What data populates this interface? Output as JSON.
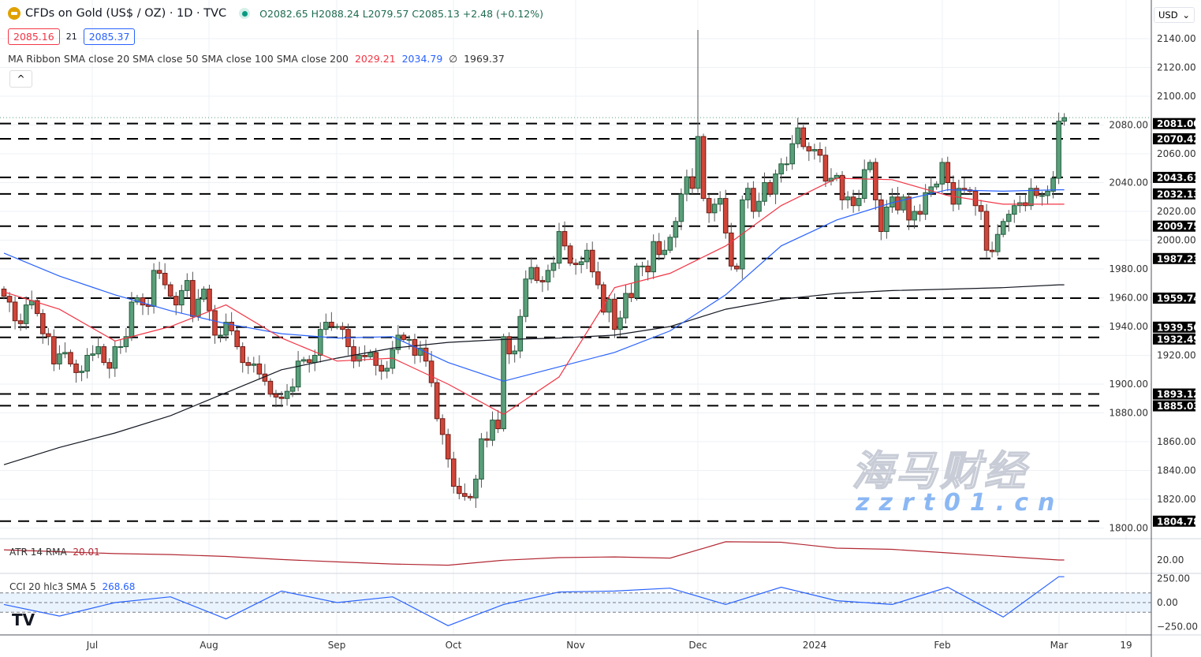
{
  "header": {
    "symbol_title": "CFDs on Gold (US$ / OZ) · 1D · TVC",
    "ohlc": "O2082.65 H2088.24 L2079.57 C2085.13 +2.48 (+0.12%)",
    "bid": "2085.16",
    "spread": "21",
    "ask": "2085.37",
    "ma_ribbon_label": "MA Ribbon SMA close 20 SMA close 50 SMA close 100 SMA close 200",
    "ma20_value": "2029.21",
    "ma50_value": "2034.79",
    "ma100_value": "∅",
    "ma200_value": "1969.37",
    "collapse_icon": "^",
    "currency": "USD"
  },
  "atr": {
    "label": "ATR 14 RMA",
    "value": "20.01",
    "axis_label": "20.00"
  },
  "cci": {
    "label": "CCI 20 hlc3 SMA 5",
    "value": "268.68",
    "axis_labels": [
      "250.00",
      "0.00",
      "−250.00"
    ]
  },
  "watermark": {
    "text": "海马财经",
    "url_text": "zzrt01.cn"
  },
  "colors": {
    "up": "#5a9e7a",
    "down": "#d0463a",
    "sma20": "#f23645",
    "sma50": "#2962ff",
    "sma200": "#131722",
    "atr": "#b22833",
    "cci": "#2962ff"
  },
  "chart_data": {
    "type": "candlestick",
    "title": "CFDs on Gold (US$ / OZ) · 1D · TVC",
    "ylim": [
      1790,
      2150
    ],
    "y_ticks": [
      2140,
      2120,
      2100,
      2080,
      2060,
      2040,
      2020,
      2000,
      1980,
      1960,
      1940,
      1920,
      1900,
      1880,
      1860,
      1840,
      1820,
      1800
    ],
    "x_tick_labels": [
      "Jul",
      "Aug",
      "Sep",
      "Oct",
      "Nov",
      "Dec",
      "2024",
      "Feb",
      "Mar",
      "19"
    ],
    "grid": true,
    "closes": [
      1961,
      1957,
      1944,
      1942,
      1955,
      1958,
      1949,
      1935,
      1933,
      1914,
      1921,
      1922,
      1914,
      1908,
      1909,
      1920,
      1921,
      1926,
      1915,
      1911,
      1926,
      1926,
      1933,
      1957,
      1960,
      1955,
      1954,
      1979,
      1977,
      1969,
      1961,
      1955,
      1965,
      1972,
      1947,
      1959,
      1966,
      1951,
      1934,
      1934,
      1943,
      1937,
      1926,
      1915,
      1913,
      1914,
      1907,
      1902,
      1893,
      1891,
      1890,
      1895,
      1898,
      1916,
      1917,
      1915,
      1920,
      1938,
      1943,
      1940,
      1940,
      1938,
      1926,
      1916,
      1920,
      1919,
      1922,
      1913,
      1909,
      1911,
      1924,
      1934,
      1931,
      1931,
      1920,
      1925,
      1916,
      1901,
      1876,
      1865,
      1848,
      1829,
      1824,
      1822,
      1821,
      1834,
      1862,
      1861,
      1875,
      1869,
      1933,
      1921,
      1923,
      1947,
      1973,
      1981,
      1972,
      1971,
      1979,
      1984,
      2006,
      1996,
      1984,
      1983,
      1985,
      1993,
      1978,
      1969,
      1950,
      1959,
      1938,
      1946,
      1963,
      1960,
      1982,
      1982,
      1978,
      1999,
      1990,
      1993,
      2002,
      2013,
      2032,
      2044,
      2036,
      2072,
      2029,
      2019,
      2025,
      2029,
      2005,
      1982,
      1980,
      2028,
      2036,
      2020,
      2027,
      2040,
      2032,
      2046,
      2053,
      2053,
      2067,
      2078,
      2065,
      2062,
      2063,
      2059,
      2041,
      2043,
      2045,
      2028,
      2030,
      2024,
      2029,
      2049,
      2054,
      2028,
      2006,
      2023,
      2030,
      2021,
      2030,
      2014,
      2020,
      2018,
      2033,
      2037,
      2039,
      2054,
      2040,
      2025,
      2036,
      2035,
      2034,
      2024,
      2020,
      1993,
      1992,
      2004,
      2013,
      2018,
      2024,
      2026,
      2024,
      2036,
      2031,
      2031,
      2034,
      2043,
      2082.65,
      2085.13
    ],
    "last_bar": {
      "open": 2082.65,
      "high": 2088.24,
      "low": 2079.57,
      "close": 2085.13
    },
    "sma_sample_every_bars": 10,
    "sma20": [
      1964,
      1952,
      1930,
      1940,
      1955,
      1932,
      1916,
      1918,
      1900,
      1879,
      1905,
      1967,
      1977,
      1996,
      2024,
      2043,
      2042,
      2031,
      2025,
      2025
    ],
    "sma50": [
      1991,
      1975,
      1962,
      1951,
      1942,
      1935,
      1932,
      1933,
      1915,
      1902,
      1912,
      1922,
      1937,
      1962,
      1996,
      2014,
      2026,
      2035,
      2034,
      2035
    ],
    "sma200": [
      1844,
      1856,
      1866,
      1878,
      1894,
      1910,
      1918,
      1925,
      1929,
      1931,
      1932,
      1934,
      1940,
      1952,
      1959,
      1963,
      1965,
      1966,
      1967,
      1969
    ],
    "levels": [
      2081.0,
      2070.42,
      2043.61,
      2032.13,
      2009.75,
      1987.23,
      1959.74,
      1939.56,
      1932.49,
      1893.12,
      1885.03,
      1804.78
    ],
    "atr_series": [
      24.3,
      23.5,
      22.7,
      22.3,
      21.5,
      20.2,
      19.2,
      18.3,
      17.8,
      19.9,
      21.0,
      21.3,
      20.8,
      27.7,
      27.5,
      25.0,
      24.5,
      23.0,
      21.5,
      20.01
    ],
    "cci_series": [
      -20,
      -140,
      0,
      60,
      -170,
      120,
      0,
      60,
      -240,
      -20,
      110,
      120,
      150,
      -20,
      160,
      20,
      -20,
      160,
      -150,
      268.68
    ],
    "cci_bands": [
      100,
      -100
    ]
  }
}
